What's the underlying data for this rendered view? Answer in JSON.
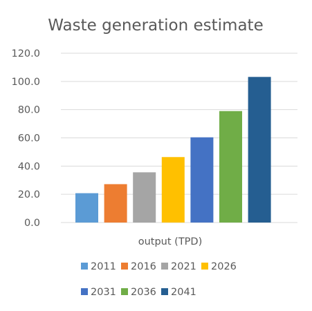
{
  "chart_data": {
    "type": "bar",
    "title": "Waste generation estimate",
    "categories": [
      "output (TPD)"
    ],
    "series": [
      {
        "name": "2011",
        "color": "#5b9bd5",
        "values": [
          20.8
        ]
      },
      {
        "name": "2016",
        "color": "#ed7d31",
        "values": [
          27.2
        ]
      },
      {
        "name": "2021",
        "color": "#a5a5a5",
        "values": [
          35.6
        ]
      },
      {
        "name": "2026",
        "color": "#ffc000",
        "values": [
          46.4
        ]
      },
      {
        "name": "2031",
        "color": "#4472c4",
        "values": [
          60.4
        ]
      },
      {
        "name": "2036",
        "color": "#70ad47",
        "values": [
          79.0
        ]
      },
      {
        "name": "2041",
        "color": "#255e91",
        "values": [
          103.2
        ]
      }
    ],
    "ylim": [
      0,
      120
    ],
    "yticks": [
      "0.0",
      "20.0",
      "40.0",
      "60.0",
      "80.0",
      "100.0",
      "120.0"
    ],
    "grid": true,
    "legend_position": "bottom"
  }
}
